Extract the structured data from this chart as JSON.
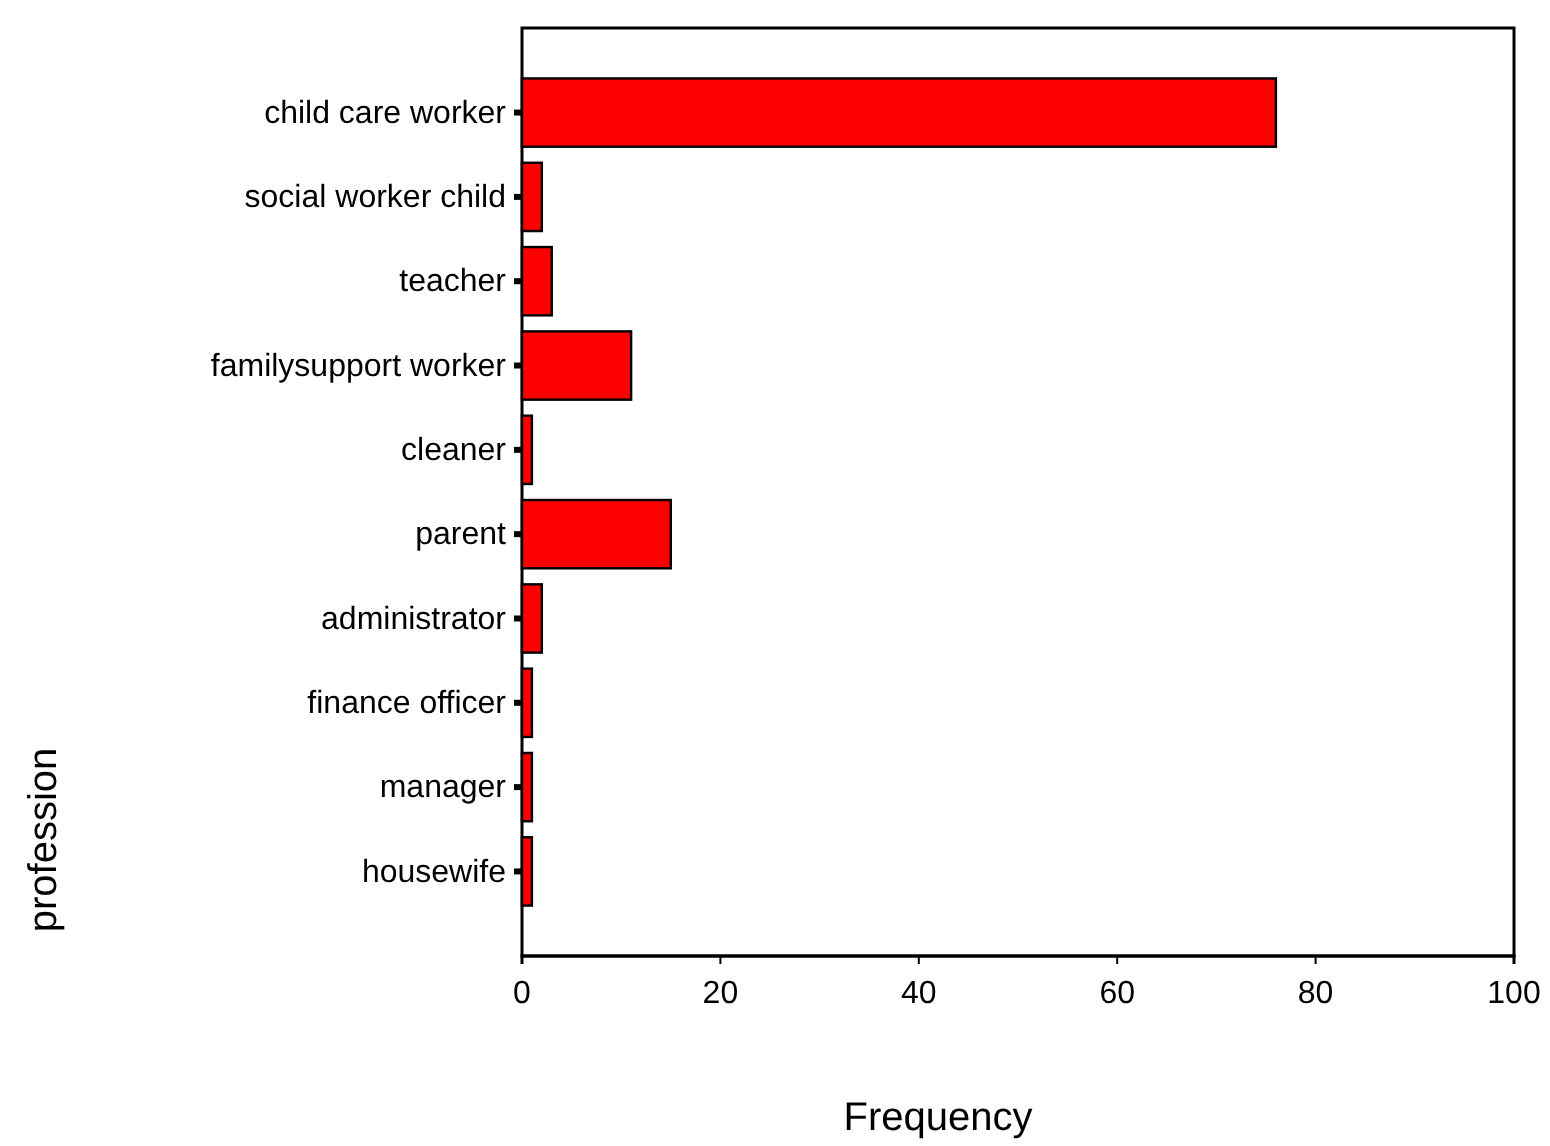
{
  "chart_data": {
    "type": "bar",
    "orientation": "horizontal",
    "xlabel": "Frequency",
    "ylabel": "profession",
    "categories": [
      "child care worker",
      "social worker child",
      "teacher",
      "familysupport worker",
      "cleaner",
      "parent",
      "administrator",
      "finance officer",
      "manager",
      "housewife"
    ],
    "values": [
      76,
      2,
      3,
      11,
      1,
      15,
      2,
      1,
      1,
      1
    ],
    "color": "#ff0000",
    "xlim": [
      0,
      100
    ],
    "xticks": [
      0,
      20,
      40,
      60,
      80,
      100
    ],
    "grid": false
  }
}
